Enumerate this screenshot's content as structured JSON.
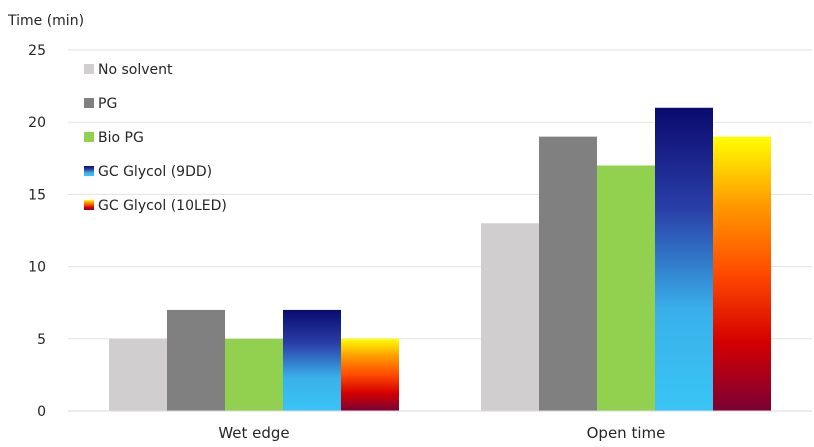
{
  "chart_data": {
    "type": "bar",
    "ylabel": "Time (min)",
    "ylim": [
      0,
      25
    ],
    "yticks": [
      0,
      5,
      10,
      15,
      20,
      25
    ],
    "grid": true,
    "legend_position": "top-left",
    "categories": [
      "Wet edge",
      "Open time"
    ],
    "series": [
      {
        "name": "No solvent",
        "values": [
          5,
          13
        ],
        "fill": "solid",
        "color": "#d0cece"
      },
      {
        "name": "PG",
        "values": [
          7,
          19
        ],
        "fill": "solid",
        "color": "#808080"
      },
      {
        "name": "Bio PG",
        "values": [
          5,
          17
        ],
        "fill": "solid",
        "color": "#92d050"
      },
      {
        "name": "GC Glycol (9DD)",
        "values": [
          7,
          21
        ],
        "fill": "gradient",
        "colors": [
          "#0a0a6e",
          "#2a3fa8",
          "#3ab0ea",
          "#39c5f5"
        ]
      },
      {
        "name": "GC Glycol (10LED)",
        "values": [
          5,
          19
        ],
        "fill": "gradient",
        "colors": [
          "#ffff00",
          "#ff9900",
          "#ff4a00",
          "#d40000",
          "#7a0035"
        ]
      }
    ]
  }
}
